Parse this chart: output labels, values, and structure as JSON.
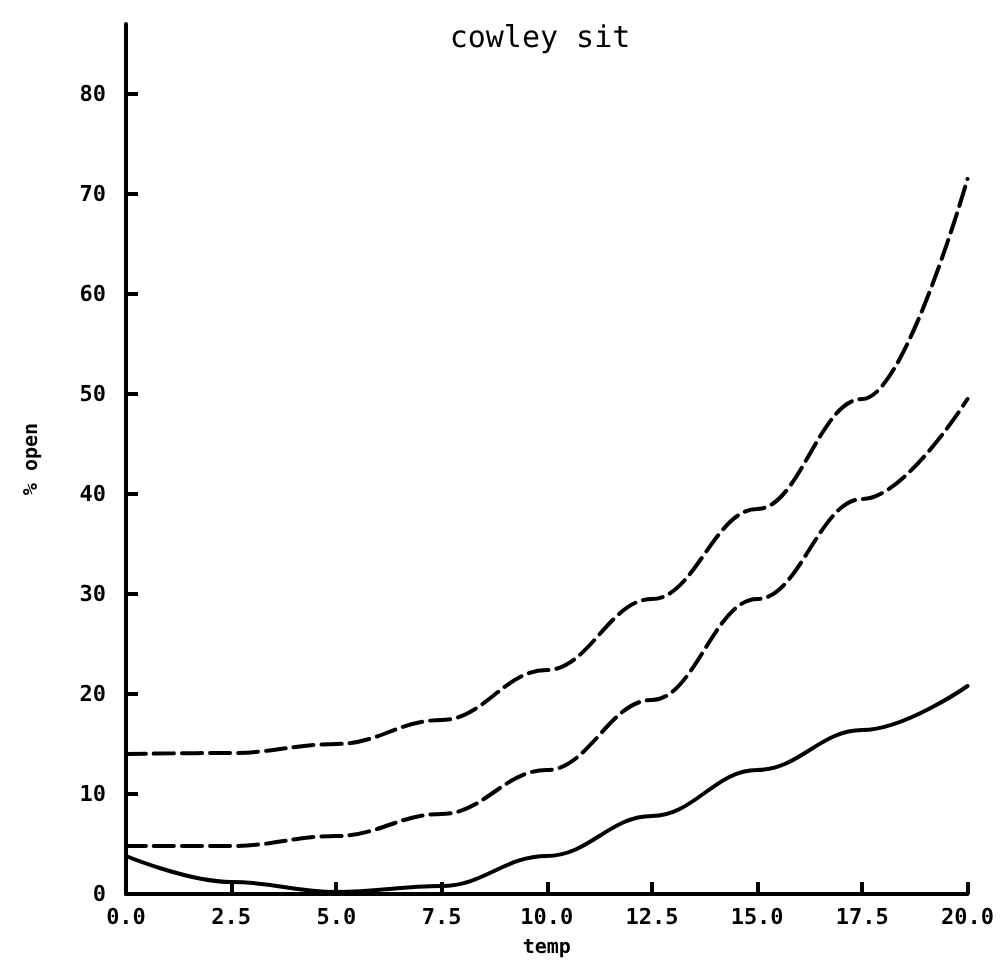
{
  "chart_data": {
    "type": "line",
    "title": "cowley sit",
    "xlabel": "temp",
    "ylabel": "% open",
    "x": [
      0,
      2.5,
      5,
      7.5,
      10,
      12.5,
      15,
      17.5,
      20
    ],
    "series": [
      {
        "color": "#000000",
        "line_style": "dashed",
        "values": [
          14.0,
          14.1,
          15.0,
          17.4,
          22.4,
          29.5,
          38.5,
          49.5,
          71.5
        ]
      },
      {
        "color": "#000000",
        "line_style": "dashed",
        "values": [
          4.8,
          4.8,
          5.8,
          8.0,
          12.4,
          19.4,
          29.5,
          39.5,
          49.5
        ]
      },
      {
        "color": "#000000",
        "line_style": "solid",
        "values": [
          3.8,
          1.2,
          0.2,
          0.8,
          3.8,
          7.8,
          12.4,
          16.4,
          20.8
        ]
      }
    ],
    "xlim": [
      0,
      20
    ],
    "xticks": [
      {
        "value": 0,
        "label": "0.0"
      },
      {
        "value": 2.5,
        "label": "2.5"
      },
      {
        "value": 5,
        "label": "5.0"
      },
      {
        "value": 7.5,
        "label": "7.5"
      },
      {
        "value": 10,
        "label": "10.0"
      },
      {
        "value": 12.5,
        "label": "12.5"
      },
      {
        "value": 15,
        "label": "15.0"
      },
      {
        "value": 17.5,
        "label": "17.5"
      },
      {
        "value": 20,
        "label": "20.0"
      }
    ],
    "ylim": [
      0,
      87
    ],
    "yticks": [
      0,
      10,
      20,
      30,
      40,
      50,
      60,
      70,
      80
    ],
    "grid": false,
    "marker": "none"
  }
}
